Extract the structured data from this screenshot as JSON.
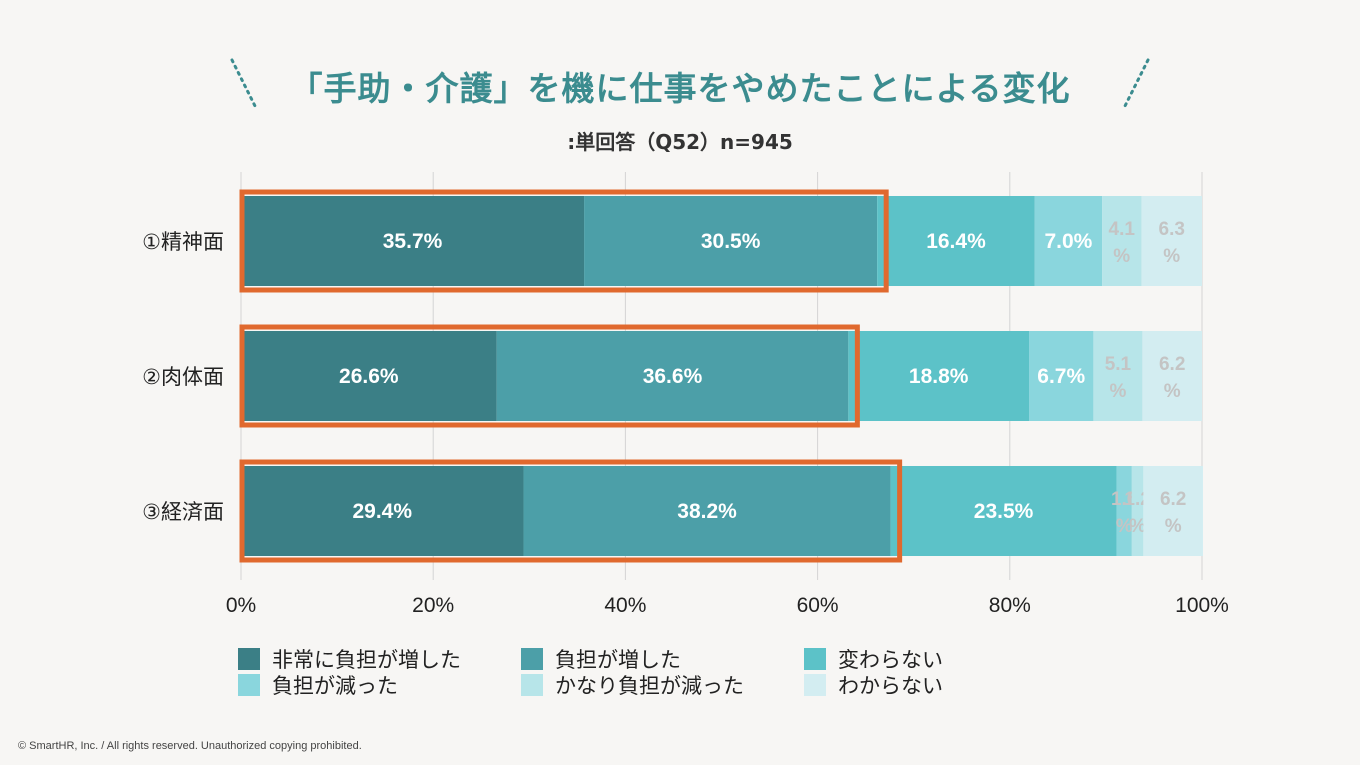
{
  "header": {
    "title": "「手助・介護」を機に仕事をやめたことによる変化",
    "subtitle": ":単回答（Q52）n=945"
  },
  "footer": {
    "copyright": "© SmartHR, Inc. / All rights reserved. Unauthorized copying prohibited."
  },
  "colors": {
    "title": "#3b8c8f",
    "highlight": "#e0692e",
    "series": [
      "#3b7f86",
      "#4c9fa8",
      "#5cc2c8",
      "#8ad6dd",
      "#b7e5e9",
      "#d3edf1"
    ]
  },
  "chart_data": {
    "type": "bar",
    "orientation": "horizontal",
    "stacked": true,
    "categories": [
      "①精神面",
      "②肉体面",
      "③経済面"
    ],
    "series": [
      {
        "name": "非常に負担が増した",
        "values": [
          35.7,
          26.6,
          29.4
        ]
      },
      {
        "name": "負担が増した",
        "values": [
          30.5,
          36.6,
          38.2
        ]
      },
      {
        "name": "変わらない",
        "values": [
          16.4,
          18.8,
          23.5
        ]
      },
      {
        "name": "負担が減った",
        "values": [
          7.0,
          6.7,
          1.6
        ]
      },
      {
        "name": "かなり負担が減った",
        "values": [
          4.1,
          5.1,
          1.2
        ]
      },
      {
        "name": "わからない",
        "values": [
          6.3,
          6.2,
          6.2
        ]
      }
    ],
    "data_labels": [
      [
        "35.7%",
        "30.5%",
        "16.4%",
        "7.0%",
        "4.1 %",
        "6.3 %"
      ],
      [
        "26.6%",
        "36.6%",
        "18.8%",
        "6.7%",
        "5.1 %",
        "6.2 %"
      ],
      [
        "29.4%",
        "38.2%",
        "23.5%",
        "1.6 %",
        "1.2 %",
        "6.2 %"
      ]
    ],
    "highlighted_series": [
      "非常に負担が増した",
      "負担が増した"
    ],
    "x_ticks": [
      "0%",
      "20%",
      "40%",
      "60%",
      "80%",
      "100%"
    ],
    "xlim": [
      0,
      100
    ],
    "grid": true,
    "legend_position": "bottom"
  }
}
